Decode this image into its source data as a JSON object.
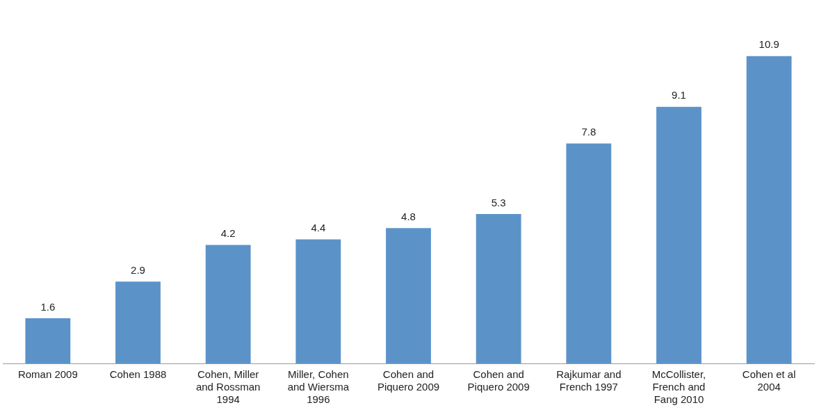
{
  "chart_data": {
    "type": "bar",
    "categories": [
      "Roman 2009",
      "Cohen 1988",
      "Cohen, Miller and Rossman 1994",
      "Miller, Cohen and Wiersma 1996",
      "Cohen and Piquero 2009",
      "Cohen and Piquero 2009",
      "Rajkumar and French 1997",
      "McCollister, French and Fang 2010",
      "Cohen et al 2004"
    ],
    "values": [
      1.6,
      2.9,
      4.2,
      4.4,
      4.8,
      5.3,
      7.8,
      9.1,
      10.9
    ],
    "color": "#5b93c9",
    "data_labels": true,
    "grid": false,
    "legend": false,
    "tick_labels": "x"
  }
}
